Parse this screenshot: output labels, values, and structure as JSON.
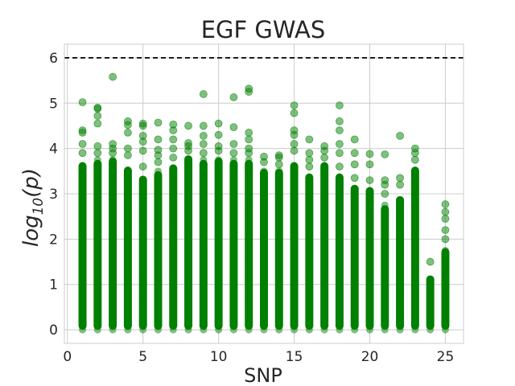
{
  "chart_data": {
    "type": "scatter",
    "title": "EGF GWAS",
    "xlabel": "SNP",
    "ylabel": {
      "base": "log",
      "subscript": "10",
      "rest": "(p)"
    },
    "xlim": [
      -0.2,
      26.2
    ],
    "ylim": [
      -0.3,
      6.3
    ],
    "xticks": [
      0,
      5,
      10,
      15,
      20,
      25
    ],
    "yticks": [
      0,
      1,
      2,
      3,
      4,
      5,
      6
    ],
    "grid": true,
    "marker_color": "#008000",
    "marker_alpha": 0.5,
    "threshold": {
      "y": 6,
      "style": "dashed",
      "color": "#000000"
    },
    "series": [
      {
        "values": [
          {
            "x": 1,
            "dense_max": 3.7,
            "outliers": [
              3.9,
              4.1,
              4.35,
              4.4,
              5.02
            ]
          },
          {
            "x": 2,
            "dense_max": 3.75,
            "outliers": [
              3.9,
              4.05,
              4.55,
              4.72,
              4.88,
              4.9
            ]
          },
          {
            "x": 3,
            "dense_max": 3.8,
            "outliers": [
              3.9,
              4.0,
              4.1,
              5.58
            ]
          },
          {
            "x": 4,
            "dense_max": 3.6,
            "outliers": [
              3.85,
              4.0,
              4.35,
              4.52,
              4.6
            ]
          },
          {
            "x": 5,
            "dense_max": 3.4,
            "outliers": [
              3.6,
              3.95,
              4.15,
              4.28,
              4.5,
              4.55
            ]
          },
          {
            "x": 6,
            "dense_max": 3.5,
            "outliers": [
              3.7,
              3.85,
              3.97,
              4.2,
              4.57
            ]
          },
          {
            "x": 7,
            "dense_max": 3.65,
            "outliers": [
              3.8,
              4.0,
              4.2,
              4.4,
              4.53
            ]
          },
          {
            "x": 8,
            "dense_max": 3.85,
            "outliers": [
              3.95,
              4.05,
              4.12,
              4.5
            ]
          },
          {
            "x": 9,
            "dense_max": 3.75,
            "outliers": [
              3.9,
              4.1,
              4.28,
              4.5,
              5.2
            ]
          },
          {
            "x": 10,
            "dense_max": 3.8,
            "outliers": [
              3.95,
              4.05,
              4.3,
              4.55
            ]
          },
          {
            "x": 11,
            "dense_max": 3.75,
            "outliers": [
              3.9,
              4.1,
              4.47,
              5.13
            ]
          },
          {
            "x": 12,
            "dense_max": 3.75,
            "outliers": [
              3.9,
              4.0,
              4.2,
              4.35,
              5.25,
              5.32
            ]
          },
          {
            "x": 13,
            "dense_max": 3.55,
            "outliers": [
              3.7,
              3.82
            ]
          },
          {
            "x": 14,
            "dense_max": 3.55,
            "outliers": [
              3.65,
              3.8,
              3.85
            ]
          },
          {
            "x": 15,
            "dense_max": 3.7,
            "outliers": [
              3.95,
              4.1,
              4.3,
              4.4,
              4.78,
              4.95
            ]
          },
          {
            "x": 16,
            "dense_max": 3.45,
            "outliers": [
              3.6,
              3.75,
              3.9,
              4.2
            ]
          },
          {
            "x": 17,
            "dense_max": 3.7,
            "outliers": [
              3.8,
              3.95,
              4.05
            ]
          },
          {
            "x": 18,
            "dense_max": 3.45,
            "outliers": [
              3.6,
              3.9,
              4.1,
              4.4,
              4.6,
              4.95
            ]
          },
          {
            "x": 19,
            "dense_max": 3.2,
            "outliers": [
              3.35,
              3.65,
              3.9,
              4.2
            ]
          },
          {
            "x": 20,
            "dense_max": 3.15,
            "outliers": [
              3.3,
              3.65,
              3.88
            ]
          },
          {
            "x": 21,
            "dense_max": 2.75,
            "outliers": [
              3.0,
              3.2,
              3.3,
              3.87
            ]
          },
          {
            "x": 22,
            "dense_max": 2.95,
            "outliers": [
              3.2,
              3.35,
              4.28
            ]
          },
          {
            "x": 23,
            "dense_max": 3.6,
            "outliers": [
              3.75,
              3.9,
              4.0
            ]
          },
          {
            "x": 24,
            "dense_max": 1.2,
            "outliers": [
              1.5
            ]
          },
          {
            "x": 25,
            "dense_max": 1.8,
            "outliers": [
              2.0,
              2.2,
              2.45,
              2.6,
              2.77
            ]
          }
        ]
      }
    ]
  }
}
